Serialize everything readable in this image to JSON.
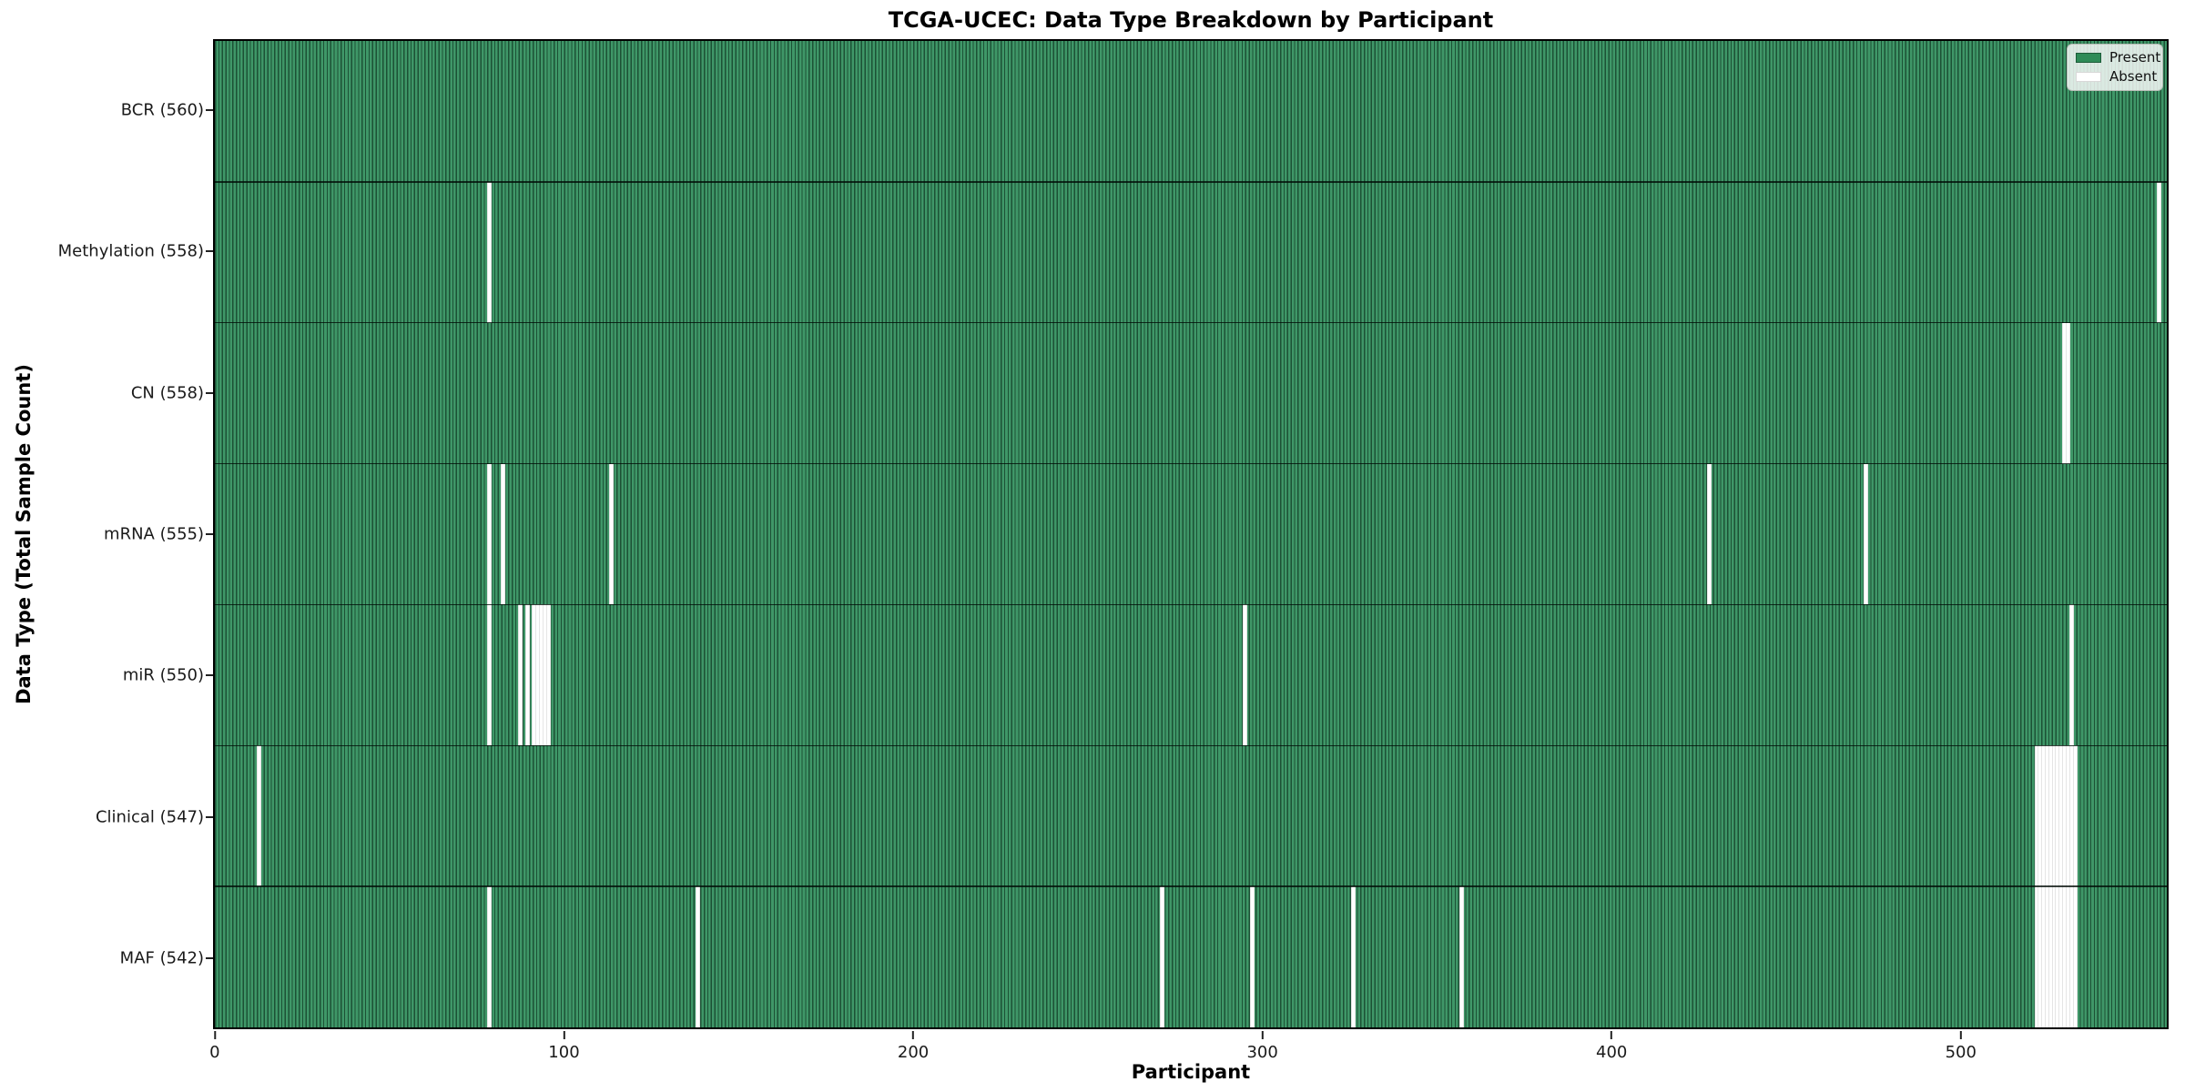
{
  "figure": {
    "title": "TCGA-UCEC: Data Type Breakdown by Participant",
    "xlabel": "Participant",
    "ylabel": "Data Type (Total Sample Count)"
  },
  "legend": {
    "items": [
      {
        "label": "Present",
        "color": "#2e8b57",
        "edge": "#1d5c39"
      },
      {
        "label": "Absent",
        "color": "#ffffff",
        "edge": "#d8d8d8"
      }
    ]
  },
  "chart_data": {
    "type": "heatmap",
    "title": "TCGA-UCEC: Data Type Breakdown by Participant",
    "xlabel": "Participant",
    "ylabel": "Data Type (Total Sample Count)",
    "legend_position": "upper right",
    "legend_entries": [
      "Present",
      "Absent"
    ],
    "x_max": 560,
    "x_ticks": [
      0,
      100,
      200,
      300,
      400,
      500
    ],
    "colors": {
      "present": "#2e8b57",
      "absent": "#ffffff",
      "bar_edge": "#0a2616"
    },
    "rows": [
      {
        "data_type": "BCR",
        "label": "BCR (560)",
        "present_count": 560,
        "absent_count": 0,
        "absent_participants": []
      },
      {
        "data_type": "Methylation",
        "label": "Methylation (558)",
        "present_count": 558,
        "absent_count": 2,
        "absent_participants": [
          78,
          557
        ]
      },
      {
        "data_type": "CN",
        "label": "CN (558)",
        "present_count": 558,
        "absent_count": 2,
        "absent_participants": [
          530,
          531
        ]
      },
      {
        "data_type": "mRNA",
        "label": "mRNA (555)",
        "present_count": 555,
        "absent_count": 5,
        "absent_participants": [
          78,
          82,
          113,
          428,
          473
        ]
      },
      {
        "data_type": "miR",
        "label": "miR (550)",
        "present_count": 550,
        "absent_count": 10,
        "absent_participants": [
          78,
          87,
          89,
          91,
          92,
          93,
          94,
          95,
          295,
          532
        ]
      },
      {
        "data_type": "Clinical",
        "label": "Clinical (547)",
        "present_count": 547,
        "absent_count": 13,
        "absent_participants": [
          12,
          522,
          523,
          524,
          525,
          526,
          527,
          528,
          529,
          530,
          531,
          532,
          533
        ]
      },
      {
        "data_type": "MAF",
        "label": "MAF (542)",
        "present_count": 542,
        "absent_count": 18,
        "absent_participants": [
          78,
          138,
          271,
          297,
          326,
          357,
          522,
          523,
          524,
          525,
          526,
          527,
          528,
          529,
          530,
          531,
          532,
          533
        ]
      }
    ]
  }
}
